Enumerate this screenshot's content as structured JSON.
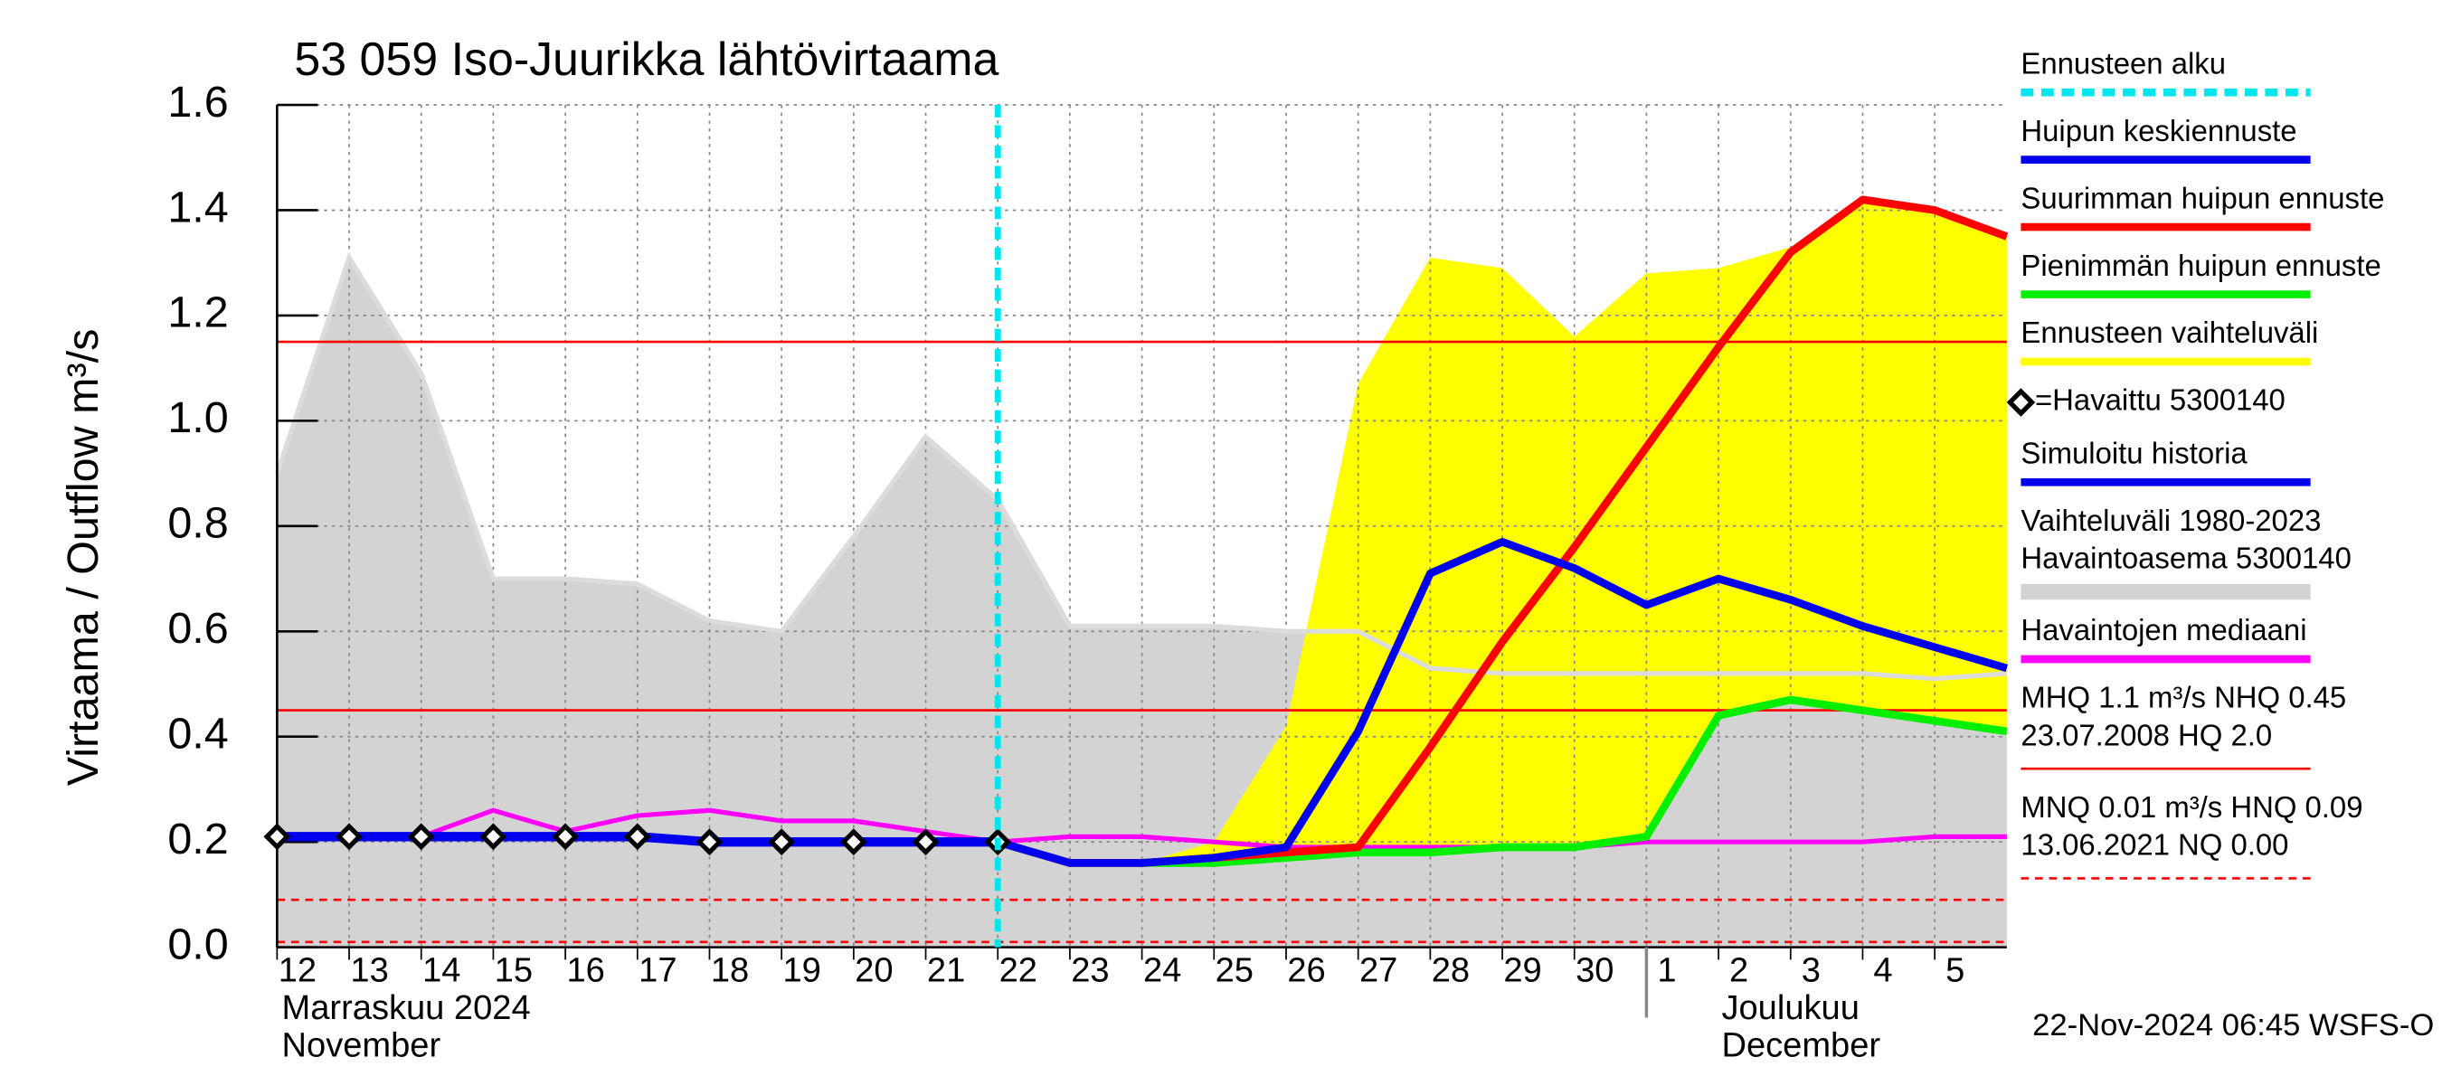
{
  "chart_data": {
    "type": "line",
    "title": "53 059 Iso-Juurikka lähtövirtaama",
    "y_label": "Virtaama / Outflow    m³/s",
    "x_group_labels": [
      {
        "at": "2024-11-12",
        "lines": [
          "Marraskuu 2024",
          "November"
        ]
      },
      {
        "at": "2024-12-01",
        "lines": [
          "Joulukuu",
          "December"
        ]
      }
    ],
    "footer": "22-Nov-2024 06:45 WSFS-O",
    "forecast_start": {
      "x": "2024-11-22",
      "color": "#00e5ee"
    },
    "x": [
      "2024-11-12",
      "2024-11-13",
      "2024-11-14",
      "2024-11-15",
      "2024-11-16",
      "2024-11-17",
      "2024-11-18",
      "2024-11-19",
      "2024-11-20",
      "2024-11-21",
      "2024-11-22",
      "2024-11-23",
      "2024-11-24",
      "2024-11-25",
      "2024-11-26",
      "2024-11-27",
      "2024-11-28",
      "2024-11-29",
      "2024-11-30",
      "2024-12-01",
      "2024-12-02",
      "2024-12-03",
      "2024-12-04",
      "2024-12-05",
      "2024-12-06"
    ],
    "xlim": [
      "2024-11-12",
      "2024-12-06"
    ],
    "xticks": [
      {
        "value": "2024-11-12",
        "label": "12"
      },
      {
        "value": "2024-11-13",
        "label": "13"
      },
      {
        "value": "2024-11-14",
        "label": "14"
      },
      {
        "value": "2024-11-15",
        "label": "15"
      },
      {
        "value": "2024-11-16",
        "label": "16"
      },
      {
        "value": "2024-11-17",
        "label": "17"
      },
      {
        "value": "2024-11-18",
        "label": "18"
      },
      {
        "value": "2024-11-19",
        "label": "19"
      },
      {
        "value": "2024-11-20",
        "label": "20"
      },
      {
        "value": "2024-11-21",
        "label": "21"
      },
      {
        "value": "2024-11-22",
        "label": "22"
      },
      {
        "value": "2024-11-23",
        "label": "23"
      },
      {
        "value": "2024-11-24",
        "label": "24"
      },
      {
        "value": "2024-11-25",
        "label": "25"
      },
      {
        "value": "2024-11-26",
        "label": "26"
      },
      {
        "value": "2024-11-27",
        "label": "27"
      },
      {
        "value": "2024-11-28",
        "label": "28"
      },
      {
        "value": "2024-11-29",
        "label": "29"
      },
      {
        "value": "2024-11-30",
        "label": "30"
      },
      {
        "value": "2024-12-01",
        "label": "1"
      },
      {
        "value": "2024-12-02",
        "label": "2"
      },
      {
        "value": "2024-12-03",
        "label": "3"
      },
      {
        "value": "2024-12-04",
        "label": "4"
      },
      {
        "value": "2024-12-05",
        "label": "5"
      }
    ],
    "ylim": [
      0,
      1.6
    ],
    "yticks": [
      {
        "value": 0,
        "label": "0.0"
      },
      0.2,
      0.4,
      0.6,
      0.8,
      {
        "value": 1,
        "label": "1.0"
      },
      1.2,
      1.4,
      1.6
    ],
    "grid": true,
    "bands": [
      {
        "color": "#d3d3d3",
        "edge_color": "#dcdcdc",
        "upper": [
          0.9,
          1.31,
          1.09,
          0.7,
          0.7,
          0.69,
          0.62,
          0.6,
          0.78,
          0.97,
          0.85,
          0.61,
          0.61,
          0.61,
          0.6,
          0.6,
          0.53,
          0.52,
          0.52,
          0.52,
          0.52,
          0.52,
          0.52,
          0.51,
          0.52
        ],
        "lower": [
          0,
          0,
          0,
          0,
          0,
          0,
          0,
          0,
          0,
          0,
          0,
          0,
          0,
          0,
          0,
          0,
          0,
          0,
          0,
          0,
          0,
          0,
          0,
          0,
          0
        ]
      },
      {
        "color": "#ffff00",
        "upper": [
          null,
          null,
          null,
          null,
          null,
          null,
          null,
          null,
          null,
          null,
          0.2,
          0.16,
          0.16,
          0.2,
          0.42,
          1.07,
          1.31,
          1.29,
          1.16,
          1.28,
          1.29,
          1.33,
          1.42,
          1.4,
          1.35
        ],
        "lower": [
          null,
          null,
          null,
          null,
          null,
          null,
          null,
          null,
          null,
          null,
          0.2,
          0.16,
          0.16,
          0.16,
          0.17,
          0.18,
          0.18,
          0.19,
          0.19,
          0.21,
          0.44,
          0.47,
          0.45,
          0.43,
          0.41
        ]
      }
    ],
    "ref_lines": [
      {
        "value": 1.15,
        "color": "#ff0000",
        "dashed": false
      },
      {
        "value": 0.45,
        "color": "#ff0000",
        "dashed": false
      },
      {
        "value": 0.09,
        "color": "#ff0000",
        "dashed": true
      },
      {
        "value": 0.01,
        "color": "#ff0000",
        "dashed": true
      }
    ],
    "series": [
      {
        "color": "#ff00ff",
        "width": 3,
        "values": [
          0.21,
          0.21,
          0.21,
          0.26,
          0.22,
          0.25,
          0.26,
          0.24,
          0.24,
          0.22,
          0.2,
          0.21,
          0.21,
          0.2,
          0.19,
          0.19,
          0.19,
          0.19,
          0.19,
          0.2,
          0.2,
          0.2,
          0.2,
          0.21,
          0.21
        ]
      },
      {
        "color": "#00ee00",
        "width": 5,
        "values": [
          null,
          null,
          null,
          null,
          null,
          null,
          null,
          null,
          null,
          null,
          0.2,
          0.16,
          0.16,
          0.16,
          0.17,
          0.18,
          0.18,
          0.19,
          0.19,
          0.21,
          0.44,
          0.47,
          0.45,
          0.43,
          0.41
        ]
      },
      {
        "color": "#ff0000",
        "width": 5,
        "values": [
          null,
          null,
          null,
          null,
          null,
          null,
          null,
          null,
          null,
          null,
          0.2,
          0.16,
          0.16,
          0.17,
          0.18,
          0.19,
          0.38,
          0.58,
          0.76,
          0.95,
          1.14,
          1.32,
          1.42,
          1.4,
          1.35
        ]
      },
      {
        "color": "#0000ee",
        "width": 5,
        "values": [
          null,
          null,
          null,
          null,
          null,
          null,
          null,
          null,
          null,
          null,
          0.2,
          0.16,
          0.16,
          0.17,
          0.19,
          0.41,
          0.71,
          0.77,
          0.72,
          0.65,
          0.7,
          0.66,
          0.61,
          0.57,
          0.53
        ]
      },
      {
        "color": "#0000ee",
        "width": 6,
        "values": [
          0.21,
          0.21,
          0.21,
          0.21,
          0.21,
          0.21,
          0.2,
          0.2,
          0.2,
          0.2,
          0.2,
          null,
          null,
          null,
          null,
          null,
          null,
          null,
          null,
          null,
          null,
          null,
          null,
          null,
          null
        ]
      },
      {
        "color": "#000000",
        "marker": "diamond",
        "values": [
          0.21,
          0.21,
          0.21,
          0.21,
          0.21,
          0.21,
          0.2,
          0.2,
          0.2,
          0.2,
          0.2,
          null,
          null,
          null,
          null,
          null,
          null,
          null,
          null,
          null,
          null,
          null,
          null,
          null,
          null
        ]
      }
    ],
    "legend": [
      {
        "lines": [
          "Ennusteen alku"
        ],
        "color": "#00e5ee",
        "style": "dashed"
      },
      {
        "lines": [
          "Huipun keskiennuste"
        ],
        "color": "#0000ee",
        "style": "solid"
      },
      {
        "lines": [
          "Suurimman huipun ennuste"
        ],
        "color": "#ff0000",
        "style": "solid"
      },
      {
        "lines": [
          "Pienimmän huipun ennuste"
        ],
        "color": "#00ee00",
        "style": "solid"
      },
      {
        "lines": [
          "Ennusteen vaihteluväli"
        ],
        "color": "#ffff00",
        "style": "solid"
      },
      {
        "lines": [
          "=Havaittu 5300140"
        ],
        "color": "#000000",
        "style": "diamond"
      },
      {
        "lines": [
          "Simuloitu historia"
        ],
        "color": "#0000ee",
        "style": "solid"
      },
      {
        "lines": [
          "Vaihteluväli 1980-2023",
          " Havaintoasema 5300140"
        ],
        "color": "#d3d3d3",
        "style": "thick"
      },
      {
        "lines": [
          "Havaintojen mediaani"
        ],
        "color": "#ff00ff",
        "style": "solid"
      },
      {
        "lines": [
          "MHQ  1.1 m³/s NHQ 0.45",
          "23.07.2008 HQ  2.0"
        ],
        "color": "#ff0000",
        "style": "thin"
      },
      {
        "lines": [
          "MNQ 0.01 m³/s HNQ 0.09",
          "13.06.2021 NQ 0.00"
        ],
        "color": "#ff0000",
        "style": "thindash"
      }
    ]
  }
}
